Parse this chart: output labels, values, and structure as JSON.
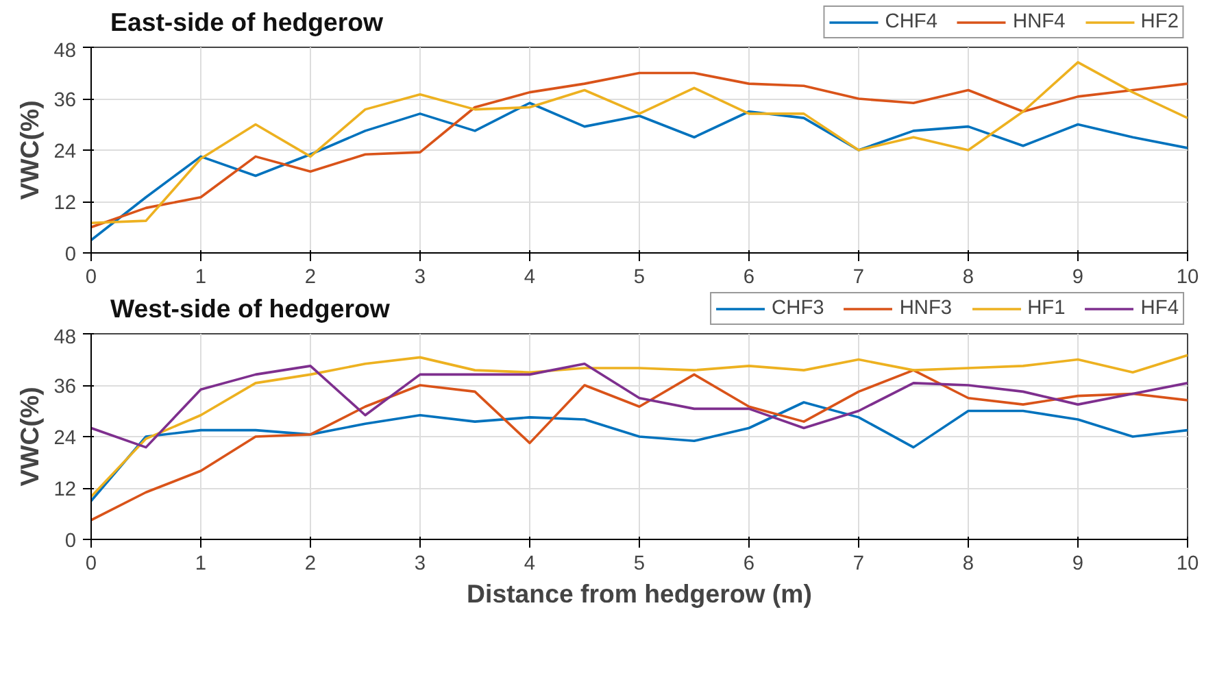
{
  "chart_data": [
    {
      "type": "line",
      "title": "East-side of hedgerow",
      "ylabel": "VWC(%)",
      "x": [
        0,
        0.5,
        1,
        1.5,
        2,
        2.5,
        3,
        3.5,
        4,
        4.5,
        5,
        5.5,
        6,
        6.5,
        7,
        7.5,
        8,
        8.5,
        9,
        9.5,
        10
      ],
      "xlim": [
        0,
        10
      ],
      "xticks": [
        0,
        1,
        2,
        3,
        4,
        5,
        6,
        7,
        8,
        9,
        10
      ],
      "ylim": [
        0,
        48
      ],
      "yticks": [
        0,
        12,
        24,
        36,
        48
      ],
      "grid": true,
      "legend": "top right",
      "series": [
        {
          "name": "CHF4",
          "color": "#0072bd",
          "values": [
            3,
            13,
            22.5,
            18,
            23,
            28.5,
            32.5,
            28.5,
            35,
            29.5,
            32,
            27,
            33,
            31.5,
            24,
            28.5,
            29.5,
            25,
            30,
            27,
            24.5
          ]
        },
        {
          "name": "HNF4",
          "color": "#d95319",
          "values": [
            6,
            10.5,
            13,
            22.5,
            19,
            23,
            23.5,
            34,
            37.5,
            39.5,
            42,
            42,
            39.5,
            39,
            36,
            35,
            38,
            33,
            36.5,
            38,
            39.5
          ]
        },
        {
          "name": "HF2",
          "color": "#edb120",
          "values": [
            7,
            7.5,
            22,
            30,
            22.5,
            33.5,
            37,
            33.5,
            34,
            38,
            32.5,
            38.5,
            32.5,
            32.5,
            24,
            27,
            24,
            33,
            44.5,
            37.5,
            31.5
          ]
        }
      ]
    },
    {
      "type": "line",
      "title": "West-side of hedgerow",
      "ylabel": "VWC(%)",
      "xlabel": "Distance from hedgerow (m)",
      "x": [
        0,
        0.5,
        1,
        1.5,
        2,
        2.5,
        3,
        3.5,
        4,
        4.5,
        5,
        5.5,
        6,
        6.5,
        7,
        7.5,
        8,
        8.5,
        9,
        9.5,
        10
      ],
      "xlim": [
        0,
        10
      ],
      "xticks": [
        0,
        1,
        2,
        3,
        4,
        5,
        6,
        7,
        8,
        9,
        10
      ],
      "ylim": [
        0,
        48
      ],
      "yticks": [
        0,
        12,
        24,
        36,
        48
      ],
      "grid": true,
      "legend": "top right",
      "series": [
        {
          "name": "CHF3",
          "color": "#0072bd",
          "values": [
            9,
            24,
            25.5,
            25.5,
            24.5,
            27,
            29,
            27.5,
            28.5,
            28,
            24,
            23,
            26,
            32,
            28.5,
            21.5,
            30,
            30,
            28,
            24,
            25.5
          ]
        },
        {
          "name": "HNF3",
          "color": "#d95319",
          "values": [
            4.5,
            11,
            16,
            24,
            24.5,
            31,
            36,
            34.5,
            22.5,
            36,
            31,
            38.5,
            31,
            27.5,
            34.5,
            39.5,
            33,
            31.5,
            33.5,
            34,
            32.5
          ]
        },
        {
          "name": "HF1",
          "color": "#edb120",
          "values": [
            10,
            23.5,
            29,
            36.5,
            38.5,
            41,
            42.5,
            39.5,
            39,
            40,
            40,
            39.5,
            40.5,
            39.5,
            42,
            39.5,
            40,
            40.5,
            42,
            39,
            43
          ]
        },
        {
          "name": "HF4",
          "color": "#7e2f8e",
          "values": [
            26,
            21.5,
            35,
            38.5,
            40.5,
            29,
            38.5,
            38.5,
            38.5,
            41,
            33,
            30.5,
            30.5,
            26,
            30,
            36.5,
            36,
            34.5,
            31.5,
            34,
            36.5
          ]
        }
      ]
    }
  ]
}
